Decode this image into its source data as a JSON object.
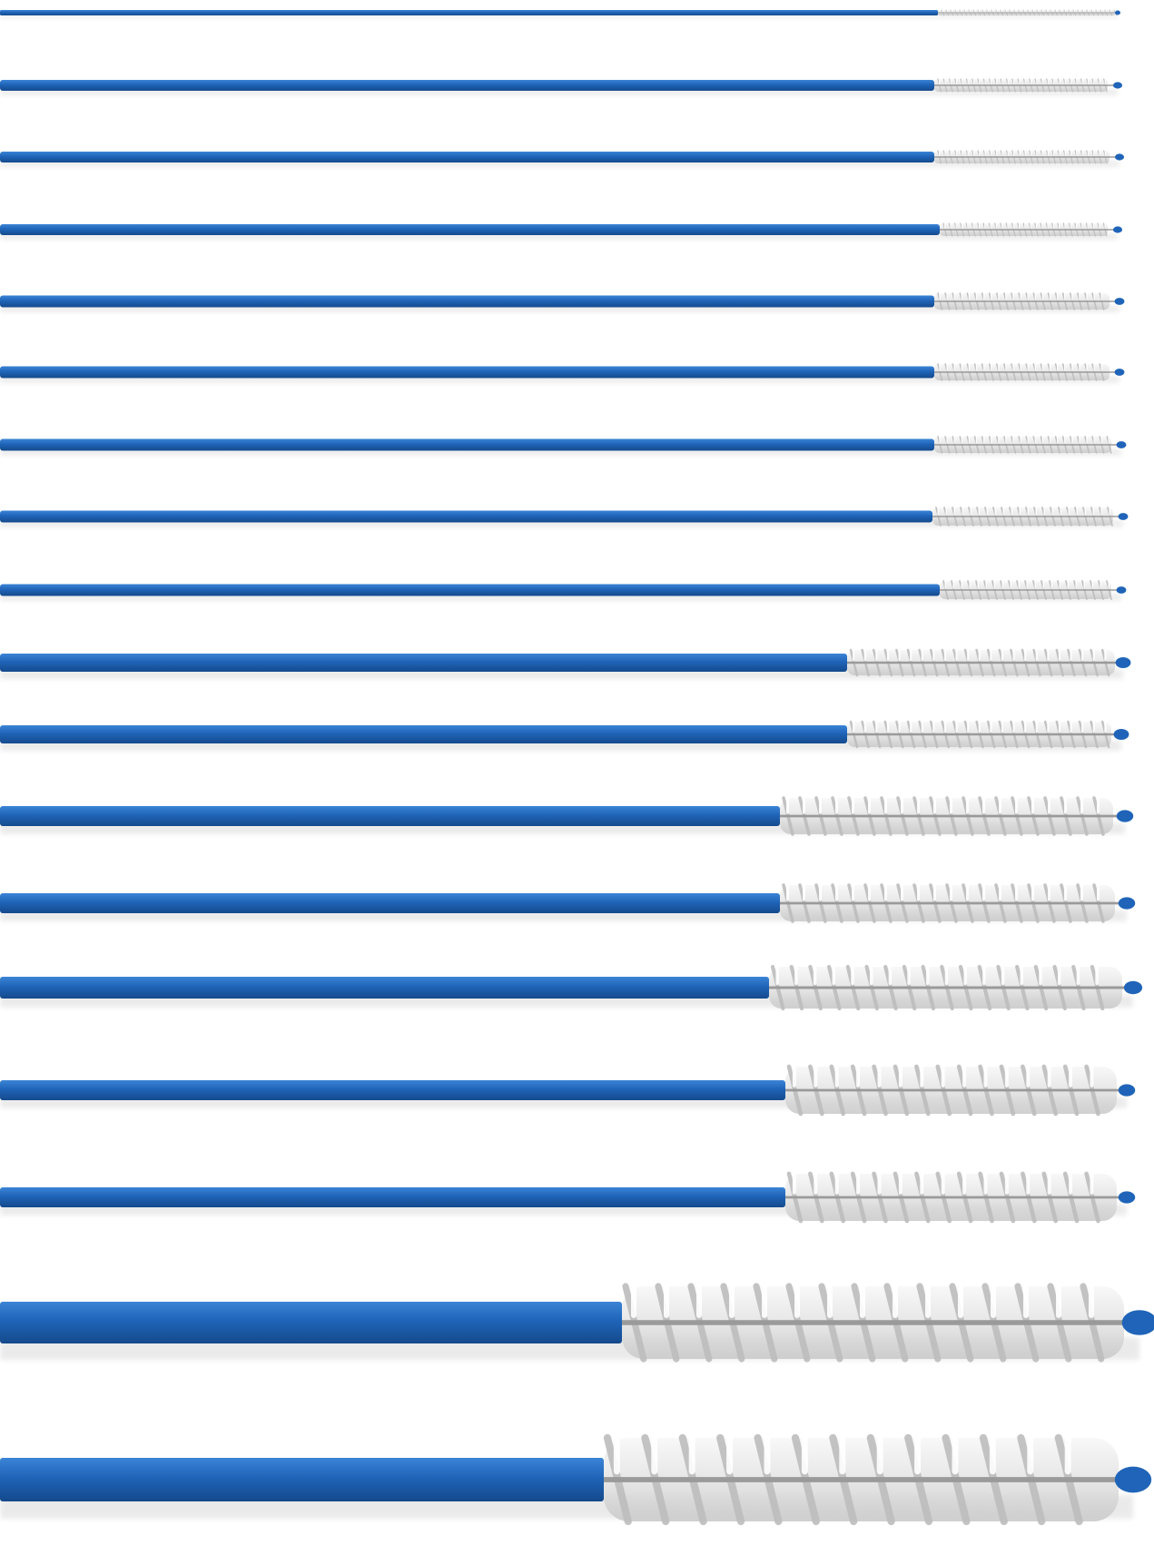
{
  "scene": {
    "subject": "brush-set",
    "colors": {
      "background": "#ffffff",
      "handle": "#1f64b8",
      "handle_highlight": "#3b84d6",
      "handle_shadow": "#154a8c",
      "bristle": "#eeeeee",
      "bristle_shade": "#bdbdbd",
      "wire": "#9a9a9a",
      "tip": "#1f64b8"
    }
  }
}
